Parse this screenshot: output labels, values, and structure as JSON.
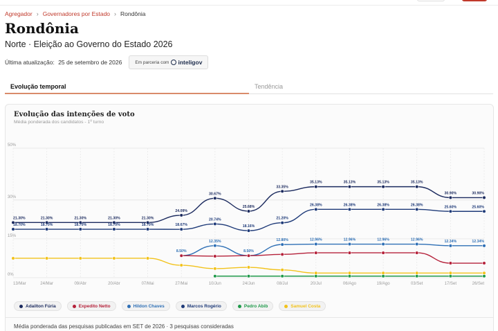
{
  "breadcrumb": {
    "items": [
      "Agregador",
      "Governadores por Estado",
      "Rondônia"
    ],
    "separator": "›"
  },
  "page": {
    "title": "Rondônia",
    "subtitle": "Norte · Eleição ao Governo do Estado 2026",
    "updated_label": "Última atualização:",
    "updated_value": "25 de setembro de 2026",
    "partner_prefix": "Em parceria com",
    "partner_name": "inteligov"
  },
  "tabs": [
    {
      "label": "Evolução temporal",
      "active": true
    },
    {
      "label": "Tendência",
      "active": false
    }
  ],
  "card": {
    "title": "Evolução das intenções de voto",
    "subtitle": "Média ponderada dos candidatos - 1º turno",
    "footnote": "Média ponderada das pesquisas publicadas em SET de 2026 · 3 pesquisas consideradas"
  },
  "colors": {
    "accent": "#c0392b",
    "tab_underline": "#d98b6a"
  },
  "chart_data": {
    "type": "line",
    "title": "Evolução das intenções de voto",
    "subtitle": "Média ponderada dos candidatos - 1º turno",
    "xlabel": "",
    "ylabel": "",
    "ylim": [
      0,
      50
    ],
    "y_ticks": [
      0,
      15,
      30,
      50
    ],
    "y_tick_labels": [
      "0%",
      "15%",
      "30%",
      "50%"
    ],
    "grid": true,
    "legend_position": "bottom",
    "categories": [
      "13/Mar",
      "24/Mar",
      "09/Abr",
      "20/Abr",
      "07/Mai",
      "27/Mai",
      "10/Jun",
      "24/Jun",
      "08/Jul",
      "20/Jul",
      "06/Ago",
      "19/Ago",
      "03/Set",
      "17/Set",
      "26/Set"
    ],
    "series": [
      {
        "name": "Adailton Fúria",
        "color": "#1b2a5e",
        "values": [
          21.3,
          21.3,
          21.3,
          21.3,
          21.3,
          24.09,
          30.67,
          25.68,
          33.35,
          35.13,
          35.13,
          35.13,
          35.13,
          30.9,
          30.9
        ],
        "labels": [
          "21.30%",
          "21.30%",
          "21.30%",
          "21.30%",
          "21.30%",
          "24.09%",
          "30.67%",
          "25.68%",
          "33.35%",
          "35.13%",
          "35.13%",
          "35.13%",
          "35.13%",
          "30.90%",
          "30.90%"
        ]
      },
      {
        "name": "Marcos Rogério",
        "color": "#1e3a78",
        "values": [
          18.7,
          18.7,
          18.7,
          18.7,
          18.7,
          18.67,
          20.74,
          18.16,
          21.2,
          26.38,
          26.38,
          26.38,
          26.38,
          25.6,
          25.6
        ],
        "labels": [
          "18.70%",
          "18.70%",
          "18.70%",
          "18.70%",
          "18.70%",
          "18.67%",
          "20.74%",
          "18.16%",
          "21.20%",
          "26.38%",
          "26.38%",
          "26.38%",
          "26.38%",
          "25.60%",
          "25.60%"
        ]
      },
      {
        "name": "Hildon Chaves",
        "color": "#2e6fb5",
        "values": [
          null,
          null,
          null,
          null,
          null,
          8.5,
          12.35,
          8.5,
          12.8,
          12.96,
          12.96,
          12.96,
          12.96,
          12.34,
          12.34
        ],
        "labels": [
          "",
          "",
          "",
          "",
          "",
          "8.50%",
          "12.35%",
          "8.50%",
          "12.80%",
          "12.96%",
          "12.96%",
          "12.96%",
          "12.96%",
          "12.34%",
          "12.34%"
        ]
      },
      {
        "name": "Expedito Netto",
        "color": "#b5213a",
        "values": [
          null,
          null,
          null,
          null,
          null,
          8.5,
          8.3,
          8.5,
          9.0,
          9.6,
          9.6,
          9.6,
          9.6,
          5.6,
          5.6
        ],
        "labels": []
      },
      {
        "name": "Samuel Costa",
        "color": "#f2c21a",
        "values": [
          7.5,
          7.5,
          7.5,
          7.5,
          7.5,
          4.8,
          3.5,
          4.0,
          3.0,
          1.8,
          1.8,
          1.8,
          1.8,
          1.8,
          1.8
        ],
        "labels": []
      },
      {
        "name": "Pedro Abib",
        "color": "#1f9a4a",
        "values": [
          null,
          null,
          null,
          null,
          null,
          null,
          0.6,
          0.6,
          0.6,
          0.6,
          0.6,
          0.6,
          0.6,
          0.6,
          0.6
        ],
        "labels": []
      }
    ]
  },
  "legend": [
    {
      "name": "Adailton Fúria",
      "color": "#1b2a5e"
    },
    {
      "name": "Expedito Netto",
      "color": "#b5213a"
    },
    {
      "name": "Hildon Chaves",
      "color": "#2e6fb5"
    },
    {
      "name": "Marcos Rogério",
      "color": "#1e3a78"
    },
    {
      "name": "Pedro Abib",
      "color": "#1f9a4a"
    },
    {
      "name": "Samuel Costa",
      "color": "#f2c21a"
    }
  ]
}
